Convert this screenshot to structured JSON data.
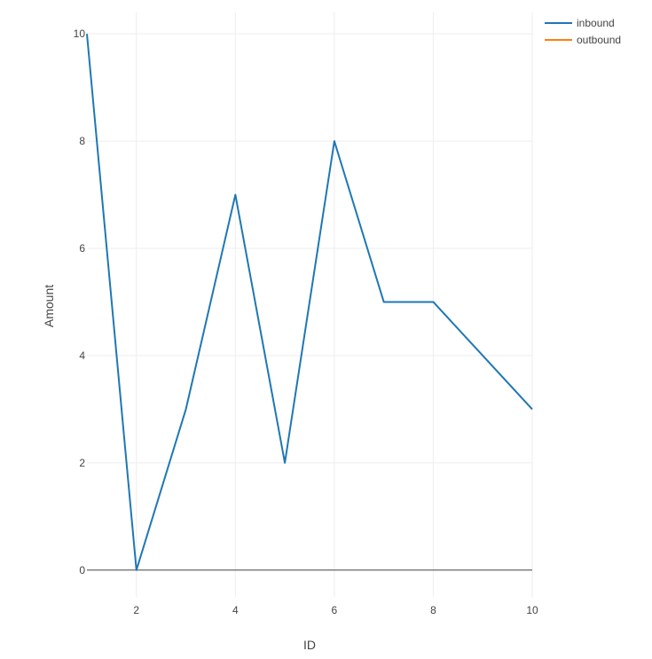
{
  "chart_data": {
    "type": "line",
    "xlabel": "ID",
    "ylabel": "Amount",
    "xlim": [
      1,
      10
    ],
    "ylim": [
      -0.5,
      10.4
    ],
    "xticks": [
      2,
      4,
      6,
      8,
      10
    ],
    "yticks": [
      0,
      2,
      4,
      6,
      8,
      10
    ],
    "grid": true,
    "legend_position": "top-right",
    "series": [
      {
        "name": "inbound",
        "color": "#1f77b4",
        "x": [
          1,
          2,
          3,
          4,
          5,
          6,
          7,
          8,
          9,
          10
        ],
        "y": [
          10,
          0,
          3,
          7,
          2,
          8,
          5,
          5,
          4,
          3
        ]
      },
      {
        "name": "outbound",
        "color": "#ff7f0e",
        "x": [],
        "y": []
      }
    ]
  }
}
